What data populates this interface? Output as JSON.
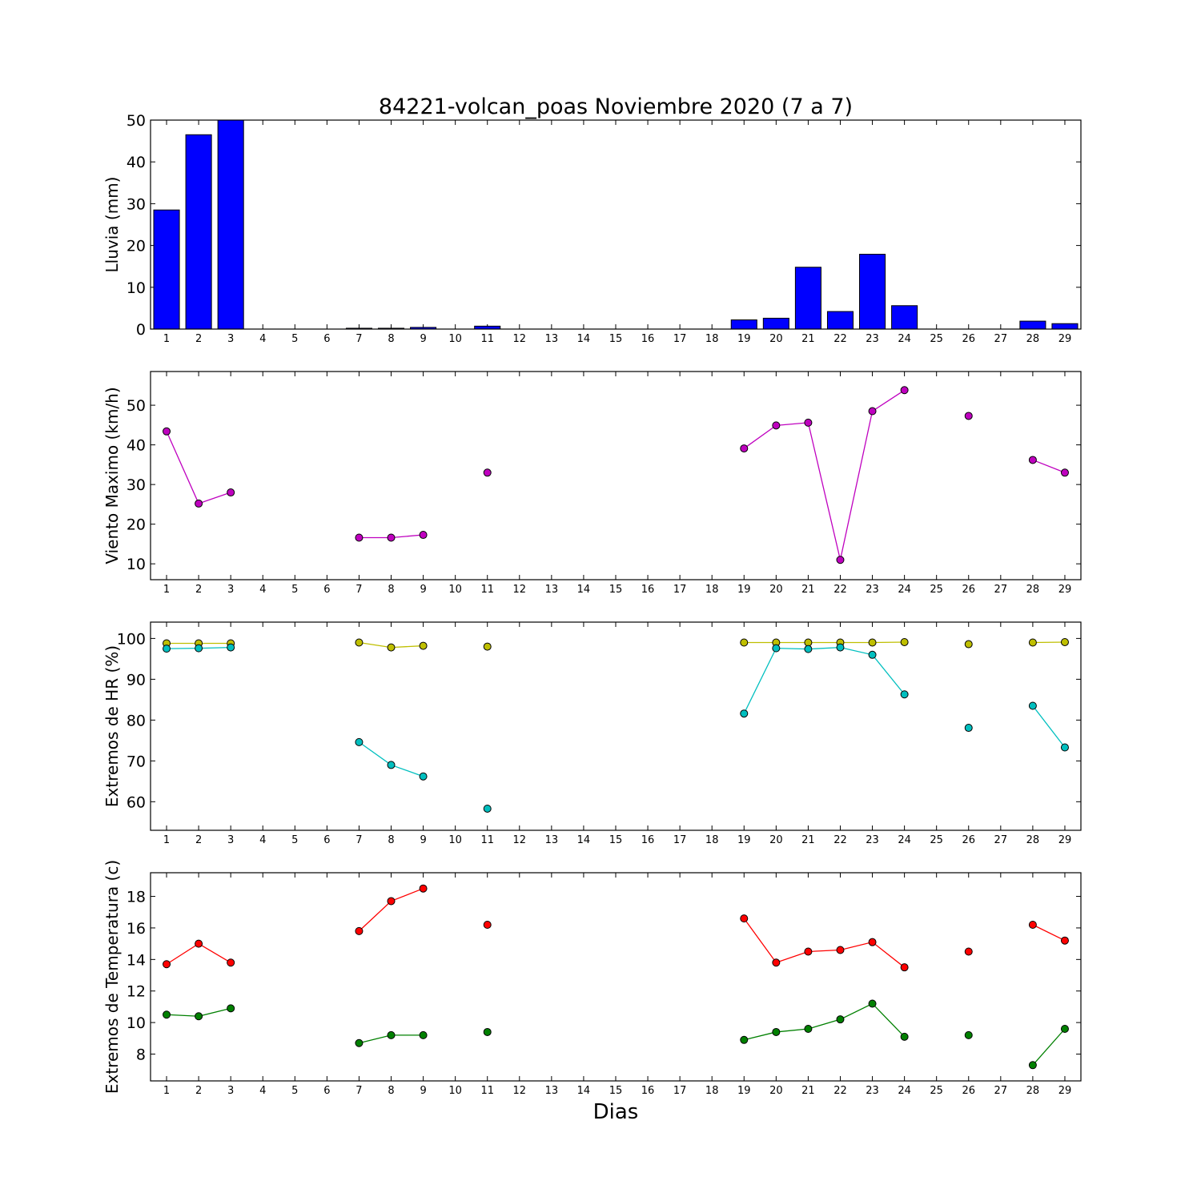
{
  "figure": {
    "title": "84221-volcan_poas Noviembre 2020  (7 a 7)",
    "xlabel": "Dias"
  },
  "chart_data": [
    {
      "type": "bar",
      "id": "lluvia",
      "ylabel": "Lluvia (mm)",
      "ylim": [
        0,
        50
      ],
      "yticks": [
        0,
        10,
        20,
        30,
        40,
        50
      ],
      "xlim": [
        0.5,
        29.5
      ],
      "categories": [
        1,
        2,
        3,
        4,
        5,
        6,
        7,
        8,
        9,
        10,
        11,
        12,
        13,
        14,
        15,
        16,
        17,
        18,
        19,
        20,
        21,
        22,
        23,
        24,
        25,
        26,
        27,
        28,
        29
      ],
      "values": [
        28.5,
        46.5,
        50.0,
        0,
        0,
        0,
        0.2,
        0.2,
        0.4,
        0,
        0.7,
        0,
        0,
        0,
        0,
        0,
        0,
        0,
        2.2,
        2.6,
        14.8,
        4.2,
        17.9,
        5.6,
        0,
        0,
        0,
        1.9,
        1.3
      ],
      "color": "#0000ff"
    },
    {
      "type": "line",
      "id": "viento",
      "ylabel": "Viento Maximo (km/h)",
      "ylim": [
        6,
        58.5
      ],
      "yticks": [
        10,
        20,
        30,
        40,
        50
      ],
      "xlim": [
        0.5,
        29.5
      ],
      "x": [
        1,
        2,
        3,
        4,
        5,
        6,
        7,
        8,
        9,
        10,
        11,
        12,
        13,
        14,
        15,
        16,
        17,
        18,
        19,
        20,
        21,
        22,
        23,
        24,
        25,
        26,
        27,
        28,
        29
      ],
      "series": [
        {
          "color": "#bf00bf",
          "values": [
            43.4,
            25.2,
            28.0,
            null,
            null,
            null,
            16.6,
            16.6,
            17.3,
            null,
            33.0,
            null,
            null,
            null,
            null,
            null,
            null,
            null,
            39.1,
            44.9,
            45.6,
            11.0,
            48.5,
            53.8,
            null,
            47.3,
            null,
            36.2,
            33.0
          ]
        }
      ]
    },
    {
      "type": "line",
      "id": "hr",
      "ylabel": "Extremos de HR (%)",
      "ylim": [
        53,
        104
      ],
      "yticks": [
        60,
        70,
        80,
        90,
        100
      ],
      "xlim": [
        0.5,
        29.5
      ],
      "x": [
        1,
        2,
        3,
        4,
        5,
        6,
        7,
        8,
        9,
        10,
        11,
        12,
        13,
        14,
        15,
        16,
        17,
        18,
        19,
        20,
        21,
        22,
        23,
        24,
        25,
        26,
        27,
        28,
        29
      ],
      "series": [
        {
          "color": "#bfbf00",
          "values": [
            98.8,
            98.8,
            98.8,
            null,
            null,
            null,
            99.0,
            97.8,
            98.2,
            null,
            98.0,
            null,
            null,
            null,
            null,
            null,
            null,
            null,
            99.0,
            99.0,
            99.0,
            99.0,
            99.0,
            99.1,
            null,
            98.6,
            null,
            99.0,
            99.1
          ]
        },
        {
          "color": "#00bfbf",
          "values": [
            97.5,
            97.6,
            97.8,
            null,
            null,
            null,
            74.6,
            69.0,
            66.2,
            null,
            58.3,
            null,
            null,
            null,
            null,
            null,
            null,
            null,
            81.6,
            97.6,
            97.4,
            97.8,
            96.0,
            86.3,
            null,
            78.1,
            null,
            83.5,
            73.3
          ]
        }
      ]
    },
    {
      "type": "line",
      "id": "temperatura",
      "ylabel": "Extremos de Temperatura (c)",
      "ylim": [
        6.3,
        19.5
      ],
      "yticks": [
        8,
        10,
        12,
        14,
        16,
        18
      ],
      "xlim": [
        0.5,
        29.5
      ],
      "x": [
        1,
        2,
        3,
        4,
        5,
        6,
        7,
        8,
        9,
        10,
        11,
        12,
        13,
        14,
        15,
        16,
        17,
        18,
        19,
        20,
        21,
        22,
        23,
        24,
        25,
        26,
        27,
        28,
        29
      ],
      "series": [
        {
          "color": "#ff0000",
          "values": [
            13.7,
            15.0,
            13.8,
            null,
            null,
            null,
            15.8,
            17.7,
            18.5,
            null,
            16.2,
            null,
            null,
            null,
            null,
            null,
            null,
            null,
            16.6,
            13.8,
            14.5,
            14.6,
            15.1,
            13.5,
            null,
            14.5,
            null,
            16.2,
            15.2
          ]
        },
        {
          "color": "#008000",
          "values": [
            10.5,
            10.4,
            10.9,
            null,
            null,
            null,
            8.7,
            9.2,
            9.2,
            null,
            9.4,
            null,
            null,
            null,
            null,
            null,
            null,
            null,
            8.9,
            9.4,
            9.6,
            10.2,
            11.2,
            9.1,
            null,
            9.2,
            null,
            7.3,
            9.6
          ]
        }
      ]
    }
  ]
}
